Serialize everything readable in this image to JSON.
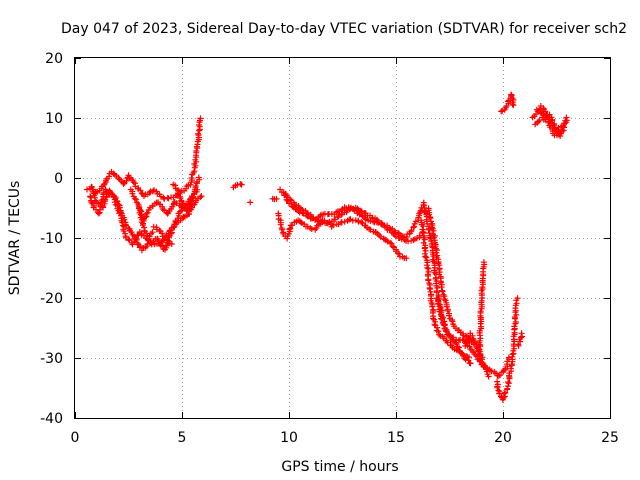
{
  "chart_data": {
    "type": "scatter",
    "title": "Day 047 of 2023, Sidereal Day-to-day VTEC variation (SDTVAR) for receiver sch2",
    "xlabel": "GPS time / hours",
    "ylabel": "SDTVAR / TECUs",
    "xlim": [
      0,
      25
    ],
    "ylim": [
      -40,
      20
    ],
    "xticks": [
      0,
      5,
      10,
      15,
      20,
      25
    ],
    "yticks": [
      -40,
      -30,
      -20,
      -10,
      0,
      10,
      20
    ],
    "grid": true,
    "marker": "+",
    "color": "#ff0000",
    "series": [
      {
        "name": "SDTVAR",
        "tracks": [
          [
            [
              0.6,
              -2
            ],
            [
              0.8,
              -1.5
            ],
            [
              1.0,
              -2.5
            ],
            [
              1.3,
              -1.5
            ],
            [
              1.5,
              0
            ],
            [
              1.7,
              1
            ],
            [
              2.0,
              0
            ],
            [
              2.3,
              -1
            ],
            [
              2.5,
              0.5
            ],
            [
              2.8,
              -1
            ],
            [
              3.2,
              -3
            ],
            [
              3.7,
              -2
            ],
            [
              4.2,
              -3.5
            ],
            [
              4.7,
              -3
            ],
            [
              5.1,
              -2
            ],
            [
              5.4,
              -1
            ],
            [
              5.6,
              2
            ],
            [
              5.75,
              6
            ],
            [
              5.85,
              10
            ]
          ],
          [
            [
              0.7,
              -3
            ],
            [
              0.9,
              -5
            ],
            [
              1.1,
              -6
            ],
            [
              1.4,
              -2
            ],
            [
              1.8,
              -3
            ],
            [
              2.1,
              -6
            ],
            [
              2.4,
              -10
            ],
            [
              2.7,
              -11
            ],
            [
              3.0,
              -9
            ],
            [
              3.3,
              -10
            ],
            [
              3.6,
              -11
            ],
            [
              4.0,
              -11
            ],
            [
              4.4,
              -9
            ],
            [
              4.9,
              -7
            ],
            [
              5.3,
              -6
            ],
            [
              5.6,
              -2
            ],
            [
              5.8,
              0
            ]
          ],
          [
            [
              0.8,
              -1.5
            ],
            [
              1.0,
              -4
            ],
            [
              1.3,
              -5
            ],
            [
              1.6,
              -2
            ],
            [
              2.0,
              -4
            ],
            [
              2.4,
              -8
            ],
            [
              2.8,
              -10
            ],
            [
              3.1,
              -12
            ],
            [
              3.4,
              -11
            ],
            [
              3.8,
              -10
            ],
            [
              4.2,
              -12
            ],
            [
              4.6,
              -8
            ],
            [
              5.0,
              -5
            ],
            [
              5.4,
              -4
            ],
            [
              5.7,
              -2
            ]
          ],
          [
            [
              2.6,
              -2
            ],
            [
              2.9,
              -4
            ],
            [
              3.2,
              -7
            ],
            [
              3.5,
              -5
            ],
            [
              3.9,
              -4
            ],
            [
              4.3,
              -6
            ],
            [
              4.7,
              -4
            ],
            [
              5.1,
              -5
            ],
            [
              5.5,
              -3
            ]
          ],
          [
            [
              3.0,
              -5
            ],
            [
              3.2,
              -8
            ],
            [
              3.4,
              -10
            ],
            [
              3.6,
              -9
            ]
          ],
          [
            [
              3.7,
              -8
            ],
            [
              4.0,
              -9
            ],
            [
              4.2,
              -10
            ],
            [
              4.5,
              -11
            ]
          ],
          [
            [
              4.6,
              -1
            ],
            [
              4.8,
              -2
            ],
            [
              5.0,
              -4
            ],
            [
              5.3,
              -6
            ],
            [
              5.6,
              -4
            ],
            [
              5.9,
              -3
            ]
          ],
          [
            [
              7.4,
              -1.5
            ],
            [
              7.6,
              -1.2
            ],
            [
              7.8,
              -1
            ]
          ],
          [
            [
              8.2,
              -4
            ]
          ],
          [
            [
              9.2,
              -3.5
            ],
            [
              9.4,
              -3.5
            ]
          ],
          [
            [
              9.6,
              -2
            ],
            [
              9.9,
              -3
            ],
            [
              10.2,
              -4
            ],
            [
              10.5,
              -5
            ],
            [
              10.9,
              -6
            ],
            [
              11.3,
              -7
            ],
            [
              11.7,
              -7.5
            ],
            [
              12.1,
              -7
            ],
            [
              12.5,
              -6
            ],
            [
              12.9,
              -5
            ],
            [
              13.3,
              -6
            ],
            [
              13.7,
              -7
            ],
            [
              14.2,
              -7.5
            ],
            [
              14.6,
              -8
            ],
            [
              15.0,
              -9
            ],
            [
              15.4,
              -10
            ],
            [
              15.7,
              -9
            ],
            [
              16.0,
              -7
            ],
            [
              16.2,
              -5
            ],
            [
              16.4,
              -6
            ]
          ],
          [
            [
              9.5,
              -6
            ],
            [
              9.7,
              -9
            ],
            [
              9.9,
              -10
            ],
            [
              10.1,
              -8
            ],
            [
              10.4,
              -7
            ],
            [
              10.8,
              -8
            ],
            [
              11.2,
              -8.5
            ],
            [
              11.6,
              -7
            ],
            [
              12.0,
              -8
            ],
            [
              12.4,
              -7.5
            ],
            [
              12.8,
              -7
            ],
            [
              13.2,
              -7
            ],
            [
              13.6,
              -8
            ],
            [
              14.0,
              -9
            ],
            [
              14.4,
              -10
            ],
            [
              14.8,
              -11
            ],
            [
              15.2,
              -13
            ],
            [
              15.5,
              -13.5
            ]
          ],
          [
            [
              9.8,
              -3
            ],
            [
              10.2,
              -5
            ],
            [
              10.7,
              -6
            ],
            [
              11.2,
              -7
            ],
            [
              11.6,
              -6
            ],
            [
              12.1,
              -6
            ],
            [
              12.6,
              -5
            ],
            [
              13.1,
              -5
            ],
            [
              13.6,
              -6
            ],
            [
              14.1,
              -7
            ],
            [
              14.6,
              -8.5
            ],
            [
              15.1,
              -10
            ],
            [
              15.6,
              -10.5
            ],
            [
              16.0,
              -10
            ],
            [
              16.3,
              -9
            ]
          ],
          [
            [
              16.3,
              -4
            ],
            [
              16.5,
              -8
            ],
            [
              16.7,
              -12
            ],
            [
              16.9,
              -18
            ],
            [
              17.1,
              -23
            ],
            [
              17.4,
              -26
            ],
            [
              17.8,
              -27
            ],
            [
              18.2,
              -27
            ],
            [
              18.6,
              -29
            ],
            [
              19.0,
              -31
            ],
            [
              19.4,
              -32
            ],
            [
              19.8,
              -33
            ],
            [
              20.1,
              -32
            ],
            [
              20.3,
              -30
            ]
          ],
          [
            [
              16.5,
              -5
            ],
            [
              16.8,
              -10
            ],
            [
              17.0,
              -15
            ],
            [
              17.2,
              -19
            ],
            [
              17.5,
              -23
            ],
            [
              17.8,
              -25
            ],
            [
              18.1,
              -26
            ],
            [
              18.5,
              -27
            ],
            [
              18.9,
              -29
            ]
          ],
          [
            [
              16.2,
              -7
            ],
            [
              16.4,
              -13
            ],
            [
              16.6,
              -19
            ],
            [
              16.8,
              -24
            ],
            [
              17.0,
              -26
            ],
            [
              17.3,
              -27
            ],
            [
              17.6,
              -28
            ],
            [
              18.0,
              -29
            ],
            [
              18.4,
              -30
            ]
          ],
          [
            [
              16.9,
              -20
            ],
            [
              17.1,
              -22
            ],
            [
              17.3,
              -25
            ],
            [
              17.6,
              -27
            ],
            [
              17.9,
              -28
            ],
            [
              18.2,
              -30
            ],
            [
              18.5,
              -31
            ]
          ],
          [
            [
              18.2,
              -28
            ],
            [
              18.5,
              -26
            ],
            [
              18.8,
              -28
            ],
            [
              19.1,
              -31
            ],
            [
              19.3,
              -33
            ]
          ],
          [
            [
              18.9,
              -30
            ],
            [
              18.95,
              -24
            ],
            [
              19.0,
              -20
            ],
            [
              19.05,
              -16
            ],
            [
              19.1,
              -14
            ]
          ],
          [
            [
              19.7,
              -34
            ],
            [
              19.85,
              -36
            ],
            [
              20.0,
              -37
            ],
            [
              20.2,
              -35
            ],
            [
              20.4,
              -31
            ],
            [
              20.5,
              -28
            ],
            [
              20.55,
              -25
            ],
            [
              20.6,
              -22
            ],
            [
              20.65,
              -20
            ]
          ],
          [
            [
              20.7,
              -28
            ],
            [
              20.8,
              -27
            ],
            [
              20.9,
              -26
            ]
          ],
          [
            [
              19.9,
              11
            ],
            [
              20.05,
              11.5
            ],
            [
              20.2,
              12
            ],
            [
              20.3,
              13
            ],
            [
              20.4,
              14
            ],
            [
              20.5,
              12
            ]
          ],
          [
            [
              21.4,
              10
            ],
            [
              21.6,
              11
            ],
            [
              21.8,
              12
            ],
            [
              22.0,
              11
            ],
            [
              22.3,
              9
            ],
            [
              22.5,
              8
            ],
            [
              22.7,
              8.5
            ],
            [
              22.9,
              9
            ],
            [
              23.0,
              10
            ]
          ],
          [
            [
              21.5,
              9
            ],
            [
              21.8,
              10
            ],
            [
              22.1,
              9.5
            ],
            [
              22.4,
              7
            ],
            [
              22.6,
              7.5
            ],
            [
              22.8,
              8
            ]
          ],
          [
            [
              21.6,
              11.5
            ],
            [
              21.9,
              10.5
            ],
            [
              22.2,
              10.5
            ],
            [
              22.5,
              8
            ],
            [
              22.7,
              7
            ],
            [
              22.9,
              9.5
            ]
          ]
        ]
      }
    ]
  }
}
